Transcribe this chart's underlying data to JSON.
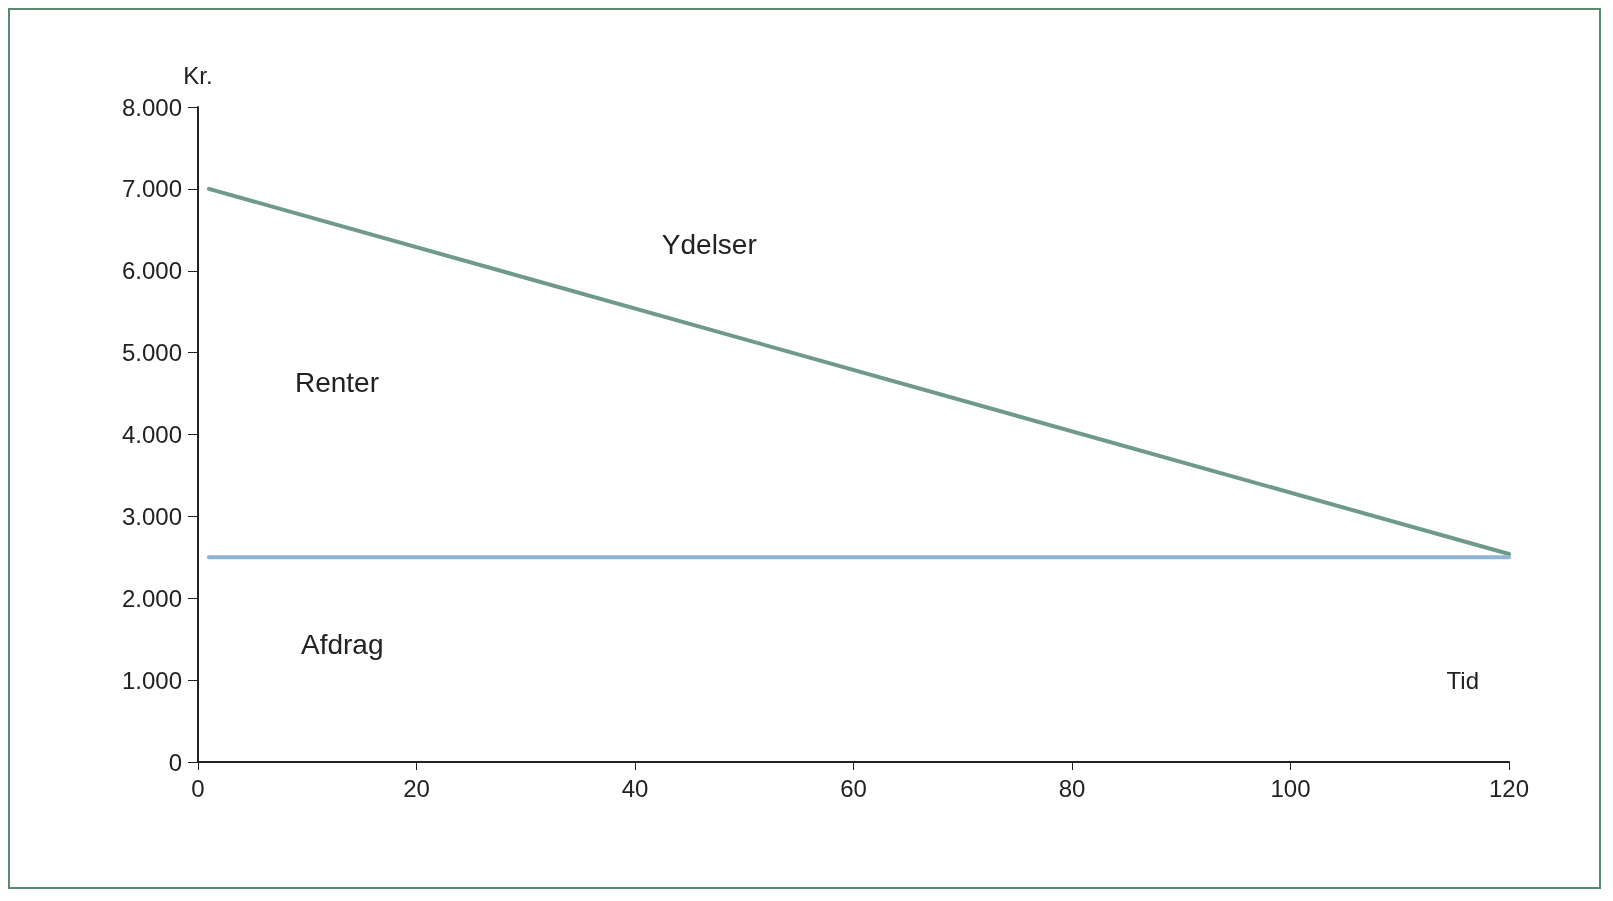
{
  "chart_data": {
    "type": "line",
    "xlabel": "Tid",
    "ylabel": "Kr.",
    "x": [
      1,
      120
    ],
    "series": [
      {
        "color": "#6f9a8b",
        "values": [
          7000,
          2540
        ]
      },
      {
        "color": "#8fb4d6",
        "values": [
          2500,
          2500
        ]
      }
    ],
    "annotations": [
      "Ydelser",
      "Renter",
      "Afdrag"
    ],
    "xlim": [
      0,
      120
    ],
    "xticks": [
      0,
      20,
      40,
      60,
      80,
      100,
      120
    ],
    "ylim": [
      0,
      8000
    ],
    "yticks": [
      0,
      {
        "value": 1000,
        "label": "1.000"
      },
      {
        "value": 2000,
        "label": "2.000"
      },
      {
        "value": 3000,
        "label": "3.000"
      },
      {
        "value": 4000,
        "label": "4.000"
      },
      {
        "value": 5000,
        "label": "5.000"
      },
      {
        "value": 6000,
        "label": "6.000"
      },
      {
        "value": 7000,
        "label": "7.000"
      },
      {
        "value": 8000,
        "label": "8.000"
      }
    ],
    "grid": false,
    "marker": "none",
    "line_style": "solid"
  }
}
